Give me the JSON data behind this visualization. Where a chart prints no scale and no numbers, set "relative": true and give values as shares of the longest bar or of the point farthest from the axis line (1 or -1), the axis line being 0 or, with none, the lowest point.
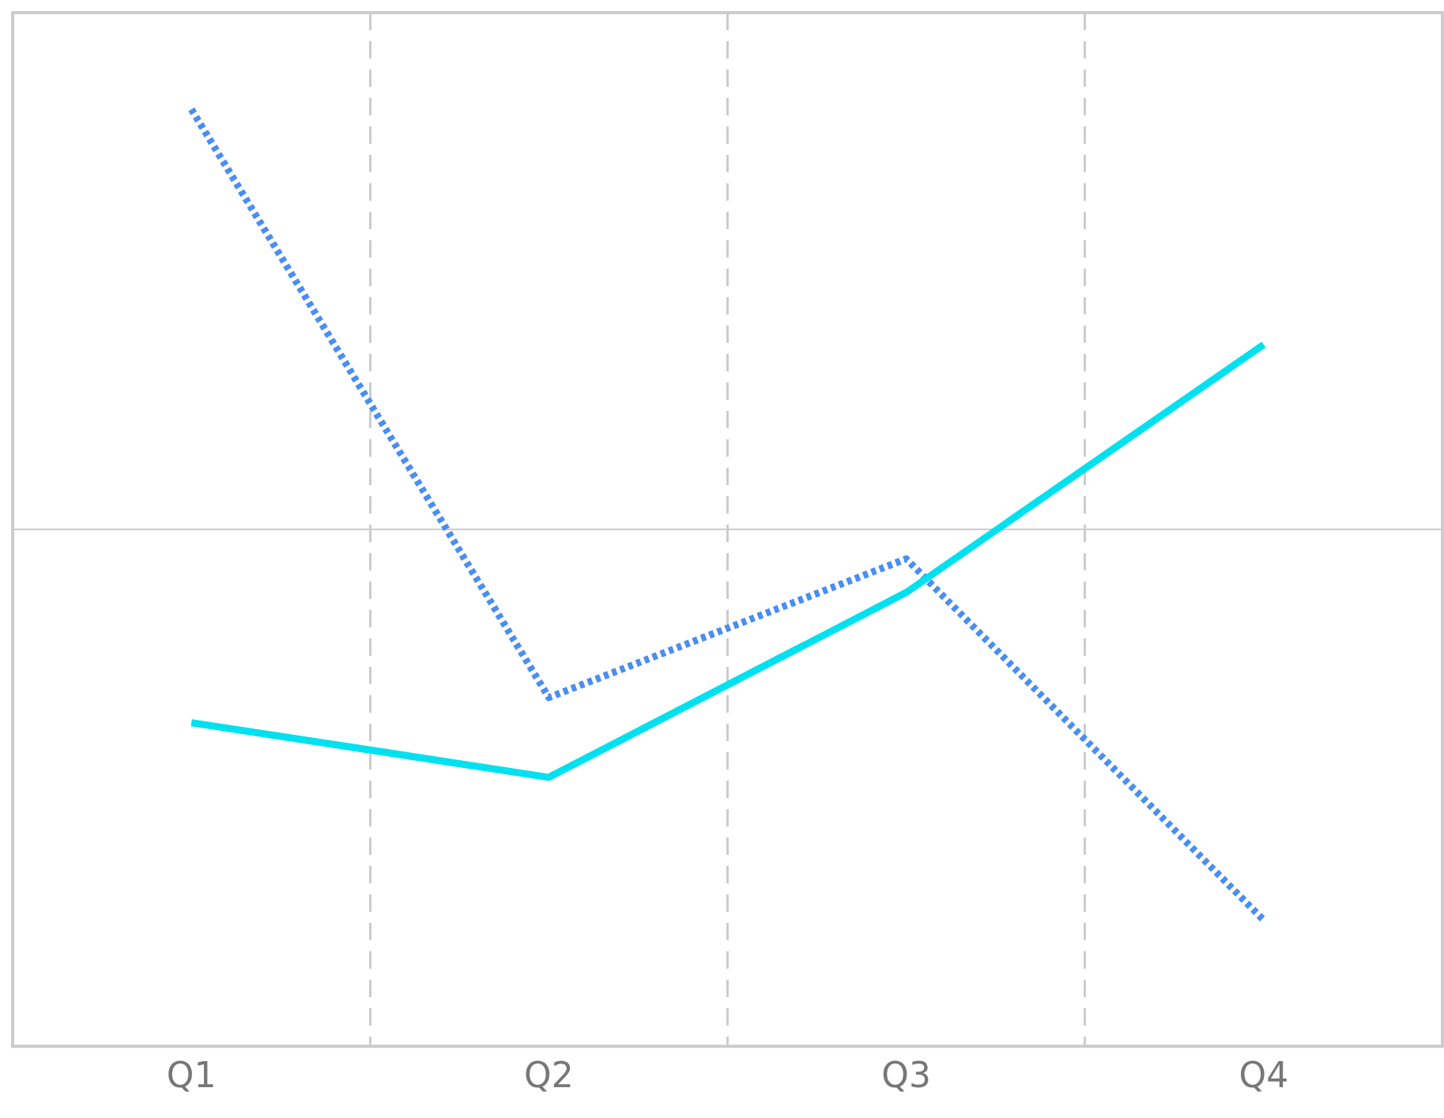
{
  "chart_data": {
    "type": "line",
    "relative": true,
    "categories": [
      "Q1",
      "Q2",
      "Q3",
      "Q4"
    ],
    "series": [
      {
        "color": "#00e1ef",
        "line_style": "solid",
        "values": [
          -0.46,
          -0.59,
          -0.15,
          0.44
        ]
      },
      {
        "color": "#4a8ef0",
        "line_style": "dotted",
        "values": [
          1.0,
          -0.4,
          -0.07,
          -0.93
        ]
      }
    ],
    "grid": "x",
    "legend": false,
    "marker": "none"
  }
}
